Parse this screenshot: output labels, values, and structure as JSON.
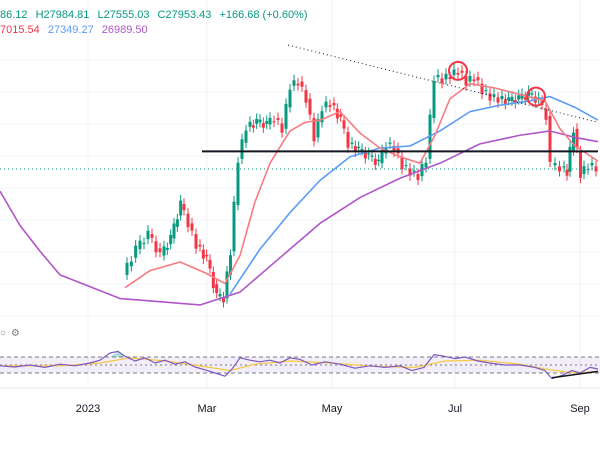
{
  "chart_data": {
    "type": "line",
    "title": "",
    "legend_top": {
      "open": "86.12",
      "high": "H27984.81",
      "low": "L27555.03",
      "close": "C27953.43",
      "change": "+166.68 (+0.60%)"
    },
    "moving_averages": [
      {
        "value": "7015.54",
        "color": "#f23645"
      },
      {
        "value": "27349.27",
        "color": "#5b9cf6"
      },
      {
        "value": "26989.50",
        "color": "#b056c7"
      }
    ],
    "x_tick_labels": [
      "2023",
      "Mar",
      "May",
      "Jul",
      "Sep"
    ],
    "colors": {
      "up": "#089981",
      "down": "#f23645",
      "ma_fast": "#f77c80",
      "ma_mid": "#5b9cf6",
      "ma_slow": "#b056c7",
      "rsi": "#7e57c2",
      "rsi_ma": "#f5c842",
      "level_line": "#131722"
    },
    "price_path": [
      {
        "t": 125,
        "v": 21100
      },
      {
        "t": 138,
        "v": 22300
      },
      {
        "t": 150,
        "v": 23000
      },
      {
        "t": 162,
        "v": 22000
      },
      {
        "t": 172,
        "v": 22800
      },
      {
        "t": 182,
        "v": 24400
      },
      {
        "t": 190,
        "v": 23500
      },
      {
        "t": 198,
        "v": 22500
      },
      {
        "t": 208,
        "v": 21800
      },
      {
        "t": 218,
        "v": 20100
      },
      {
        "t": 225,
        "v": 20000
      },
      {
        "t": 232,
        "v": 22200
      },
      {
        "t": 240,
        "v": 26500
      },
      {
        "t": 248,
        "v": 28000
      },
      {
        "t": 258,
        "v": 28200
      },
      {
        "t": 268,
        "v": 28100
      },
      {
        "t": 276,
        "v": 28400
      },
      {
        "t": 284,
        "v": 27900
      },
      {
        "t": 292,
        "v": 29900
      },
      {
        "t": 300,
        "v": 30100
      },
      {
        "t": 308,
        "v": 29300
      },
      {
        "t": 316,
        "v": 27500
      },
      {
        "t": 324,
        "v": 28900
      },
      {
        "t": 332,
        "v": 29100
      },
      {
        "t": 342,
        "v": 28300
      },
      {
        "t": 350,
        "v": 27200
      },
      {
        "t": 360,
        "v": 26900
      },
      {
        "t": 370,
        "v": 26600
      },
      {
        "t": 380,
        "v": 26300
      },
      {
        "t": 388,
        "v": 27200
      },
      {
        "t": 396,
        "v": 27000
      },
      {
        "t": 404,
        "v": 26200
      },
      {
        "t": 412,
        "v": 25900
      },
      {
        "t": 420,
        "v": 25700
      },
      {
        "t": 428,
        "v": 26500
      },
      {
        "t": 436,
        "v": 30300
      },
      {
        "t": 444,
        "v": 30200
      },
      {
        "t": 452,
        "v": 30400
      },
      {
        "t": 460,
        "v": 30600
      },
      {
        "t": 468,
        "v": 30100
      },
      {
        "t": 476,
        "v": 30300
      },
      {
        "t": 484,
        "v": 29700
      },
      {
        "t": 492,
        "v": 29400
      },
      {
        "t": 500,
        "v": 29300
      },
      {
        "t": 510,
        "v": 29200
      },
      {
        "t": 520,
        "v": 29300
      },
      {
        "t": 530,
        "v": 29500
      },
      {
        "t": 540,
        "v": 29200
      },
      {
        "t": 548,
        "v": 28500
      },
      {
        "t": 553,
        "v": 26200
      },
      {
        "t": 562,
        "v": 26100
      },
      {
        "t": 568,
        "v": 25900
      },
      {
        "t": 575,
        "v": 27900
      },
      {
        "t": 582,
        "v": 25800
      },
      {
        "t": 590,
        "v": 26200
      },
      {
        "t": 598,
        "v": 26100
      }
    ],
    "ma_fast": [
      {
        "t": 125,
        "v": 20500
      },
      {
        "t": 150,
        "v": 21300
      },
      {
        "t": 180,
        "v": 21700
      },
      {
        "t": 205,
        "v": 21200
      },
      {
        "t": 225,
        "v": 20700
      },
      {
        "t": 240,
        "v": 22000
      },
      {
        "t": 255,
        "v": 24500
      },
      {
        "t": 270,
        "v": 26300
      },
      {
        "t": 290,
        "v": 27800
      },
      {
        "t": 305,
        "v": 28200
      },
      {
        "t": 320,
        "v": 28300
      },
      {
        "t": 340,
        "v": 28700
      },
      {
        "t": 360,
        "v": 27700
      },
      {
        "t": 380,
        "v": 27000
      },
      {
        "t": 400,
        "v": 26600
      },
      {
        "t": 420,
        "v": 26300
      },
      {
        "t": 435,
        "v": 27600
      },
      {
        "t": 450,
        "v": 29300
      },
      {
        "t": 470,
        "v": 30000
      },
      {
        "t": 495,
        "v": 29800
      },
      {
        "t": 520,
        "v": 29500
      },
      {
        "t": 545,
        "v": 29200
      },
      {
        "t": 560,
        "v": 27900
      },
      {
        "t": 575,
        "v": 27100
      },
      {
        "t": 598,
        "v": 26400
      }
    ],
    "ma_mid": [
      {
        "t": 230,
        "v": 20200
      },
      {
        "t": 260,
        "v": 22300
      },
      {
        "t": 290,
        "v": 24000
      },
      {
        "t": 320,
        "v": 25500
      },
      {
        "t": 350,
        "v": 26600
      },
      {
        "t": 380,
        "v": 27000
      },
      {
        "t": 410,
        "v": 27100
      },
      {
        "t": 440,
        "v": 27800
      },
      {
        "t": 470,
        "v": 28700
      },
      {
        "t": 500,
        "v": 29000
      },
      {
        "t": 530,
        "v": 29200
      },
      {
        "t": 550,
        "v": 29400
      },
      {
        "t": 575,
        "v": 28900
      },
      {
        "t": 598,
        "v": 28300
      }
    ],
    "ma_slow": [
      {
        "t": 0,
        "v": 25000
      },
      {
        "t": 20,
        "v": 23400
      },
      {
        "t": 40,
        "v": 22200
      },
      {
        "t": 60,
        "v": 21100
      },
      {
        "t": 120,
        "v": 20000
      },
      {
        "t": 200,
        "v": 19700
      },
      {
        "t": 240,
        "v": 20300
      },
      {
        "t": 280,
        "v": 21900
      },
      {
        "t": 320,
        "v": 23500
      },
      {
        "t": 360,
        "v": 24700
      },
      {
        "t": 400,
        "v": 25600
      },
      {
        "t": 440,
        "v": 26300
      },
      {
        "t": 480,
        "v": 27200
      },
      {
        "t": 520,
        "v": 27600
      },
      {
        "t": 550,
        "v": 27800
      },
      {
        "t": 575,
        "v": 27500
      },
      {
        "t": 598,
        "v": 27300
      }
    ],
    "support_level": {
      "t_start": 202,
      "t_end": 598,
      "v": 26850
    },
    "trendline_dotted": {
      "t_start": 288,
      "v_start": 31800,
      "t_end": 598,
      "v_end": 28200
    },
    "circled_highs": [
      {
        "t": 458,
        "v": 30600
      },
      {
        "t": 536,
        "v": 29400
      }
    ],
    "rsi_levels": [
      70,
      50,
      30
    ],
    "rsi": [
      {
        "t": 0,
        "v": 48
      },
      {
        "t": 15,
        "v": 45
      },
      {
        "t": 30,
        "v": 50
      },
      {
        "t": 45,
        "v": 44
      },
      {
        "t": 60,
        "v": 52
      },
      {
        "t": 75,
        "v": 48
      },
      {
        "t": 90,
        "v": 55
      },
      {
        "t": 100,
        "v": 62
      },
      {
        "t": 110,
        "v": 80
      },
      {
        "t": 118,
        "v": 84
      },
      {
        "t": 125,
        "v": 72
      },
      {
        "t": 135,
        "v": 60
      },
      {
        "t": 145,
        "v": 68
      },
      {
        "t": 155,
        "v": 55
      },
      {
        "t": 165,
        "v": 62
      },
      {
        "t": 175,
        "v": 52
      },
      {
        "t": 185,
        "v": 58
      },
      {
        "t": 195,
        "v": 45
      },
      {
        "t": 205,
        "v": 38
      },
      {
        "t": 215,
        "v": 30
      },
      {
        "t": 225,
        "v": 22
      },
      {
        "t": 232,
        "v": 40
      },
      {
        "t": 240,
        "v": 68
      },
      {
        "t": 250,
        "v": 62
      },
      {
        "t": 260,
        "v": 58
      },
      {
        "t": 270,
        "v": 62
      },
      {
        "t": 280,
        "v": 55
      },
      {
        "t": 290,
        "v": 68
      },
      {
        "t": 300,
        "v": 64
      },
      {
        "t": 312,
        "v": 50
      },
      {
        "t": 325,
        "v": 58
      },
      {
        "t": 340,
        "v": 52
      },
      {
        "t": 355,
        "v": 42
      },
      {
        "t": 370,
        "v": 48
      },
      {
        "t": 385,
        "v": 44
      },
      {
        "t": 400,
        "v": 48
      },
      {
        "t": 412,
        "v": 36
      },
      {
        "t": 424,
        "v": 44
      },
      {
        "t": 434,
        "v": 76
      },
      {
        "t": 444,
        "v": 72
      },
      {
        "t": 455,
        "v": 66
      },
      {
        "t": 465,
        "v": 70
      },
      {
        "t": 478,
        "v": 60
      },
      {
        "t": 492,
        "v": 54
      },
      {
        "t": 505,
        "v": 50
      },
      {
        "t": 520,
        "v": 50
      },
      {
        "t": 535,
        "v": 44
      },
      {
        "t": 545,
        "v": 36
      },
      {
        "t": 552,
        "v": 16
      },
      {
        "t": 562,
        "v": 24
      },
      {
        "t": 572,
        "v": 36
      },
      {
        "t": 580,
        "v": 30
      },
      {
        "t": 590,
        "v": 44
      },
      {
        "t": 598,
        "v": 40
      }
    ],
    "rsi_ma": [
      {
        "t": 0,
        "v": 48
      },
      {
        "t": 60,
        "v": 48
      },
      {
        "t": 100,
        "v": 55
      },
      {
        "t": 130,
        "v": 68
      },
      {
        "t": 165,
        "v": 60
      },
      {
        "t": 205,
        "v": 46
      },
      {
        "t": 230,
        "v": 36
      },
      {
        "t": 255,
        "v": 52
      },
      {
        "t": 290,
        "v": 60
      },
      {
        "t": 330,
        "v": 55
      },
      {
        "t": 370,
        "v": 47
      },
      {
        "t": 415,
        "v": 44
      },
      {
        "t": 445,
        "v": 60
      },
      {
        "t": 480,
        "v": 62
      },
      {
        "t": 520,
        "v": 52
      },
      {
        "t": 550,
        "v": 38
      },
      {
        "t": 575,
        "v": 30
      },
      {
        "t": 598,
        "v": 34
      }
    ],
    "rsi_trendline": {
      "t_start": 552,
      "v_start": 18,
      "t_end": 598,
      "v_end": 34
    }
  }
}
